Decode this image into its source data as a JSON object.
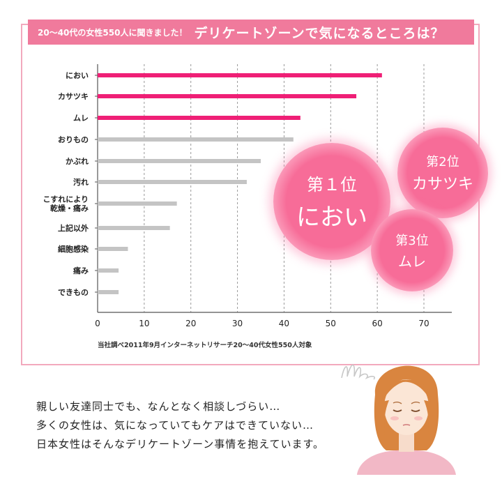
{
  "header": {
    "subtitle": "20〜40代の女性550人に聞きました！",
    "title": "デリケートゾーンで気になるところは？"
  },
  "chart_data": {
    "type": "bar",
    "orientation": "horizontal",
    "categories": [
      "におい",
      "カサツキ",
      "ムレ",
      "おりもの",
      "かぶれ",
      "汚れ",
      "こすれにより\n乾燥・痛み",
      "上記以外",
      "細胞感染",
      "痛み",
      "できもの"
    ],
    "values": [
      61,
      55.5,
      43.5,
      42,
      35,
      32,
      17,
      15.5,
      6.5,
      4.5,
      4.5
    ],
    "highlight": [
      true,
      true,
      true,
      false,
      false,
      false,
      false,
      false,
      false,
      false,
      false
    ],
    "xlim": [
      0,
      70
    ],
    "xticks": [
      0,
      10,
      20,
      30,
      40,
      50,
      60,
      70
    ],
    "grid": "vertical dashed",
    "colors": {
      "highlight": "#ef1f76",
      "other": "#c4c4c4",
      "grid": "#999999"
    }
  },
  "source": "当社調べ2011年9月インターネットリサーチ20〜40代女性550人対象",
  "ranks": [
    {
      "rank": "第１位",
      "name": "におい"
    },
    {
      "rank": "第2位",
      "name": "カサツキ"
    },
    {
      "rank": "第3位",
      "name": "ムレ"
    }
  ],
  "message": [
    "親しい友達同士でも、なんとなく相談しづらい…",
    "多くの女性は、気になっていてもケアはできていない…",
    "日本女性はそんなデリケートゾーン事情を抱えています。"
  ],
  "colors": {
    "accent": "#f07a9c",
    "frame": "#f2a9bd",
    "bubble": "#f76c98"
  }
}
